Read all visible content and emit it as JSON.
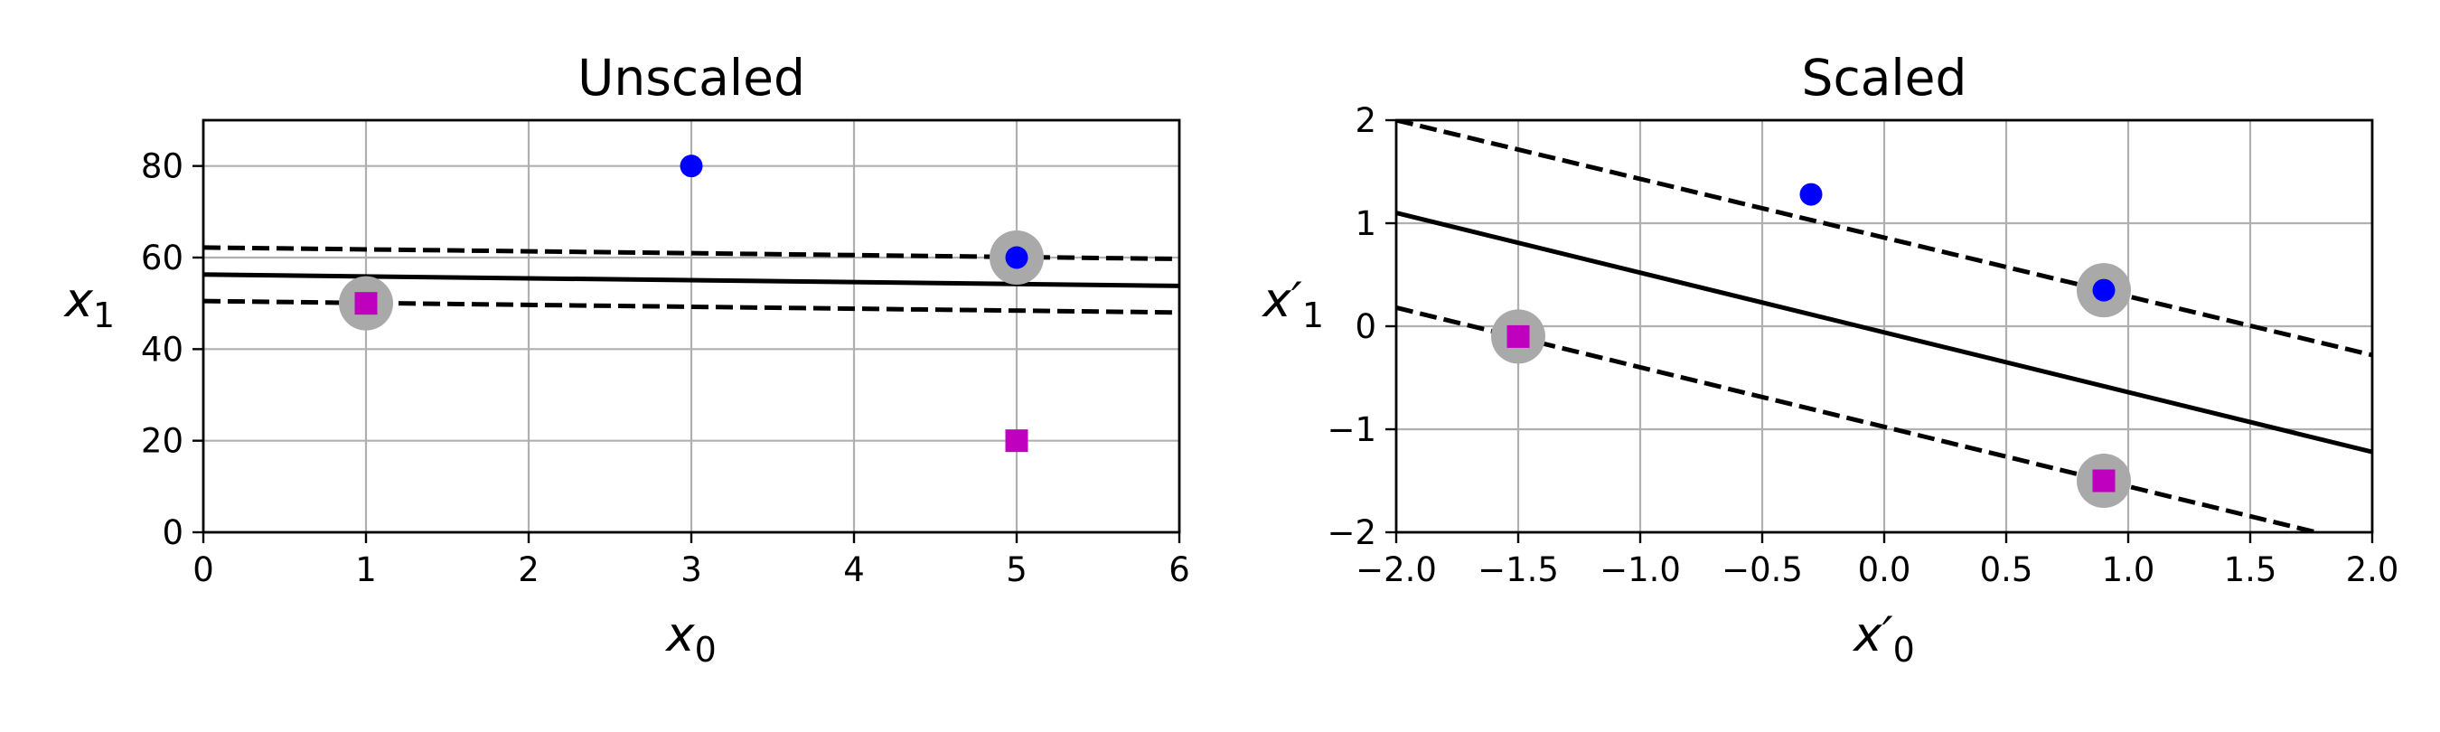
{
  "chart_data": [
    {
      "type": "scatter",
      "title": "Unscaled",
      "xlabel": "x",
      "xlabel_sub": "0",
      "ylabel": "x",
      "ylabel_sub": "1",
      "xlim": [
        0,
        6
      ],
      "ylim": [
        0,
        90
      ],
      "xticks": [
        0,
        1,
        2,
        3,
        4,
        5,
        6
      ],
      "yticks": [
        0,
        20,
        40,
        60,
        80
      ],
      "xtick_labels": [
        "0",
        "1",
        "2",
        "3",
        "4",
        "5",
        "6"
      ],
      "ytick_labels": [
        "0",
        "20",
        "40",
        "60",
        "80"
      ],
      "grid": true,
      "series": [
        {
          "marker": "circle",
          "color": "#0000ff",
          "points": [
            [
              3,
              80
            ],
            [
              5,
              60
            ]
          ]
        },
        {
          "marker": "square",
          "color": "#bf00bf",
          "points": [
            [
              1,
              50
            ],
            [
              5,
              20
            ]
          ]
        }
      ],
      "support_vectors": [
        [
          1,
          50
        ],
        [
          5,
          60
        ]
      ],
      "lines": [
        {
          "style": "solid",
          "points": [
            [
              0,
              56.3
            ],
            [
              6,
              53.8
            ]
          ]
        },
        {
          "style": "dashed",
          "points": [
            [
              0,
              62.2
            ],
            [
              6,
              59.7
            ]
          ]
        },
        {
          "style": "dashed",
          "points": [
            [
              0,
              50.5
            ],
            [
              6,
              48.0
            ]
          ]
        }
      ]
    },
    {
      "type": "scatter",
      "title": "Scaled",
      "xlabel": "x′",
      "xlabel_sub": "0",
      "ylabel": "x′",
      "ylabel_sub": "1",
      "xlim": [
        -2.0,
        2.0
      ],
      "ylim": [
        -2,
        2
      ],
      "xticks": [
        -2.0,
        -1.5,
        -1.0,
        -0.5,
        0.0,
        0.5,
        1.0,
        1.5,
        2.0
      ],
      "yticks": [
        -2,
        -1,
        0,
        1,
        2
      ],
      "xtick_labels": [
        "−2.0",
        "−1.5",
        "−1.0",
        "−0.5",
        "0.0",
        "0.5",
        "1.0",
        "1.5",
        "2.0"
      ],
      "ytick_labels": [
        "−2",
        "−1",
        "0",
        "1",
        "2"
      ],
      "grid": true,
      "series": [
        {
          "marker": "circle",
          "color": "#0000ff",
          "points": [
            [
              -0.3,
              1.28
            ],
            [
              0.9,
              0.35
            ]
          ]
        },
        {
          "marker": "square",
          "color": "#bf00bf",
          "points": [
            [
              -1.5,
              -0.1
            ],
            [
              0.9,
              -1.5
            ]
          ]
        }
      ],
      "support_vectors": [
        [
          -1.5,
          -0.1
        ],
        [
          0.9,
          0.35
        ],
        [
          0.9,
          -1.5
        ]
      ],
      "lines": [
        {
          "style": "solid",
          "points": [
            [
              -2.0,
              1.1
            ],
            [
              2.0,
              -1.22
            ]
          ]
        },
        {
          "style": "dashed",
          "points": [
            [
              -2.0,
              2.0
            ],
            [
              2.0,
              -0.28
            ]
          ]
        },
        {
          "style": "dashed",
          "points": [
            [
              -2.0,
              0.18
            ],
            [
              1.77,
              -2.0
            ]
          ]
        }
      ]
    }
  ]
}
